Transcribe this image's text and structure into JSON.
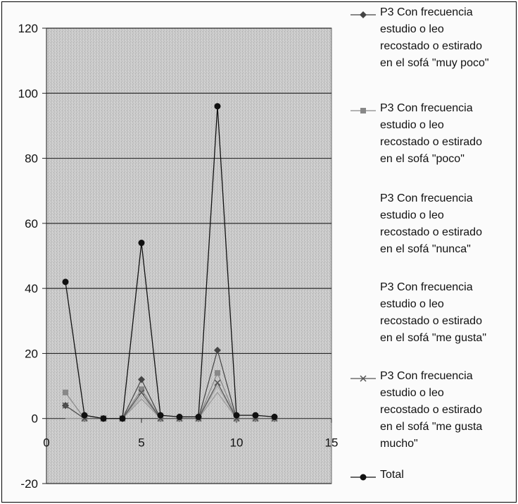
{
  "chart_data": {
    "type": "line",
    "xlim": [
      0,
      15
    ],
    "ylim": [
      -20,
      120
    ],
    "x_ticks": [
      "0",
      "5",
      "10",
      "15"
    ],
    "y_ticks": [
      "-20",
      "0",
      "20",
      "40",
      "60",
      "80",
      "100",
      "120"
    ],
    "grid": "horizontal",
    "legend": "right",
    "x": [
      1,
      2,
      3,
      4,
      5,
      6,
      7,
      8,
      9,
      10,
      11,
      12
    ],
    "series": [
      {
        "name": "P3 Con frecuencia estudio o leo recostado o estirado en el sofá \"muy poco\"",
        "color": "#444444",
        "marker": "diamond",
        "values": [
          4,
          0,
          0,
          0,
          12,
          0,
          0,
          0,
          21,
          0,
          0,
          0
        ]
      },
      {
        "name": "P3 Con frecuencia estudio o leo recostado o estirado en el sofá \"poco\"",
        "color": "#888888",
        "marker": "square",
        "values": [
          8,
          0,
          0,
          0,
          9,
          0,
          0,
          0,
          14,
          0,
          0,
          0
        ]
      },
      {
        "name": "P3 Con frecuencia estudio o leo recostado o estirado en el sofá \"nunca\"",
        "color": "#aaaaaa",
        "marker": "none",
        "values": [
          0,
          0,
          0,
          0,
          7,
          0,
          0,
          0,
          10,
          0,
          0,
          0
        ]
      },
      {
        "name": "P3 Con frecuencia estudio o leo recostado o estirado en el sofá \"me gusta\"",
        "color": "#999999",
        "marker": "none",
        "values": [
          0,
          0,
          0,
          0,
          6,
          0,
          0,
          0,
          8,
          0,
          0,
          0
        ]
      },
      {
        "name": "P3 Con frecuencia estudio o leo recostado o estirado en el sofá \"me gusta mucho\"",
        "color": "#555555",
        "marker": "x",
        "values": [
          4,
          0,
          0,
          0,
          8,
          0,
          0,
          0,
          11,
          0,
          0,
          0
        ]
      },
      {
        "name": "Total",
        "color": "#111111",
        "marker": "circle",
        "values": [
          42,
          1,
          0,
          0,
          54,
          1,
          0.5,
          0.5,
          96,
          1,
          1,
          0.5
        ]
      }
    ]
  },
  "legend": {
    "items": [
      {
        "text": "P3 Con frecuencia\nestudio o leo\nrecostado o estirado\nen el sofá \"muy poco\"",
        "line": true,
        "marker": "diamond",
        "color": "#444444"
      },
      {
        "text": "P3 Con frecuencia\nestudio o leo\nrecostado o estirado\nen el sofá \"poco\"",
        "line": true,
        "marker": "square",
        "color": "#888888"
      },
      {
        "text": "P3 Con frecuencia\nestudio o leo\nrecostado o estirado\nen el sofá \"nunca\"",
        "line": false,
        "marker": "none",
        "color": "#aaaaaa"
      },
      {
        "text": "P3 Con frecuencia\nestudio o leo\nrecostado o estirado\nen el sofá \"me gusta\"",
        "line": false,
        "marker": "none",
        "color": "#999999"
      },
      {
        "text": "P3 Con frecuencia\nestudio o leo\nrecostado o estirado\nen el sofá \"me gusta\nmucho\"",
        "line": true,
        "marker": "x",
        "color": "#555555"
      },
      {
        "text": "Total",
        "line": true,
        "marker": "circle",
        "color": "#111111"
      }
    ]
  }
}
